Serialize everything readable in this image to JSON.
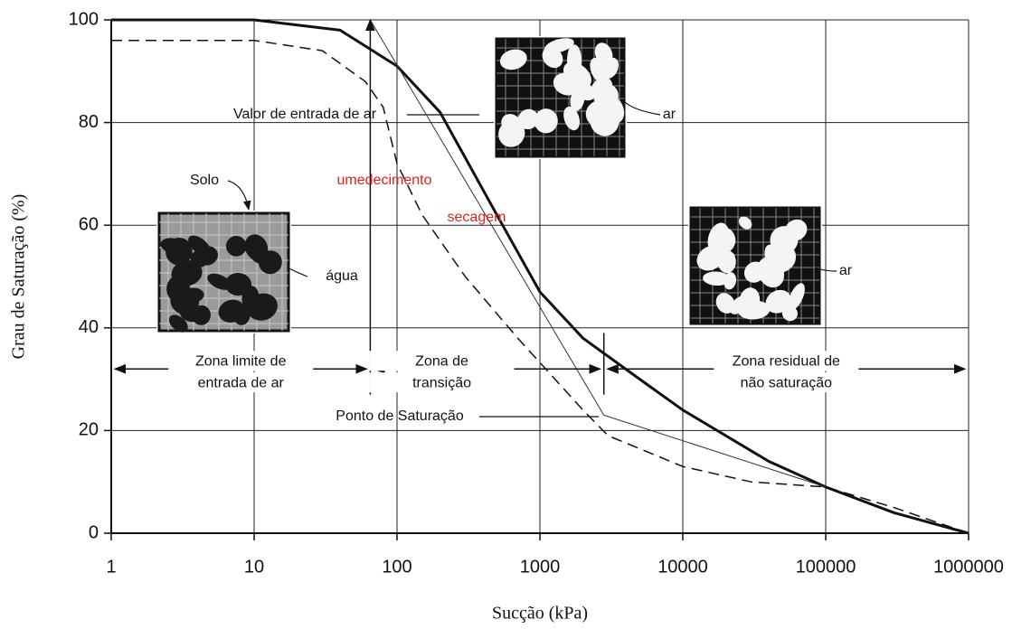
{
  "chart_data": {
    "type": "line",
    "x_label": "Sucção (kPa)",
    "y_label": "Grau de Saturação (%)",
    "x_log": true,
    "grid": true,
    "xlim": [
      1,
      1000000
    ],
    "ylim": [
      0,
      100
    ],
    "xticks": [
      1,
      10,
      100,
      1000,
      10000,
      100000,
      1000000
    ],
    "yticks": [
      0,
      20,
      40,
      60,
      80,
      100
    ],
    "series": [
      {
        "color": "#111111",
        "width": 3,
        "dashed": false,
        "x": [
          1,
          10,
          40,
          100,
          200,
          500,
          1000,
          2000,
          5000,
          10000,
          40000,
          100000,
          300000,
          1000000
        ],
        "values": [
          100,
          100,
          98,
          91,
          82,
          62,
          47,
          38,
          30,
          24,
          14,
          9,
          4,
          0
        ]
      },
      {
        "color": "#111111",
        "width": 1.5,
        "dashed": true,
        "x": [
          1,
          10,
          30,
          60,
          80,
          100,
          150,
          300,
          700,
          2000,
          3000,
          10000,
          30000,
          100000,
          300000,
          1000000
        ],
        "values": [
          96,
          96,
          94,
          88,
          83,
          72,
          62,
          50,
          38,
          24,
          19,
          13,
          10,
          9,
          5,
          0
        ]
      },
      {
        "color": "#333333",
        "width": 1,
        "dashed": false,
        "x": [
          65,
          2800,
          100000
        ],
        "values": [
          100,
          23,
          9
        ]
      },
      {
        "color": "#111111",
        "width": 1.5,
        "dashed": false,
        "arrow": true,
        "x": [
          65,
          65
        ],
        "values": [
          27,
          100
        ]
      },
      {
        "color": "#111111",
        "width": 1.5,
        "dashed": false,
        "x": [
          2800,
          2800
        ],
        "values": [
          27,
          39
        ]
      }
    ],
    "zone_y": 32,
    "zones": [
      {
        "lines": [
          "Zona limite de",
          "entrada de ar"
        ],
        "from": 1,
        "to": 65
      },
      {
        "lines": [
          "Zona de",
          "transição"
        ],
        "from": 65,
        "to": 2800
      },
      {
        "lines": [
          "Zona residual de",
          "não saturação"
        ],
        "from": 2800,
        "to": 1000000
      }
    ],
    "annotations": [
      {
        "text": "Valor de entrada de ar",
        "color": "#111111"
      },
      {
        "text": "umedecimento",
        "color": "#e02020"
      },
      {
        "text": "secagem",
        "color": "#e02020"
      },
      {
        "text": "Solo",
        "color": "#111111"
      },
      {
        "text": "água",
        "color": "#111111"
      },
      {
        "text": "ar",
        "color": "#111111"
      },
      {
        "text": "ar",
        "color": "#111111"
      },
      {
        "text": "Ponto de Saturação",
        "color": "#111111"
      }
    ]
  }
}
